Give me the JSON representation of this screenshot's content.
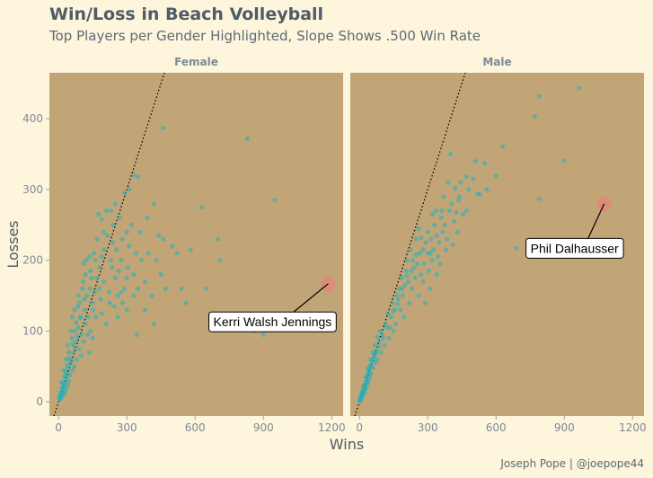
{
  "chart_data": {
    "type": "scatter",
    "title": "Win/Loss in Beach Volleyball",
    "subtitle": "Top Players per Gender Highlighted, Slope Shows .500 Win Rate",
    "xlabel": "Wins",
    "ylabel": "Losses",
    "xlim": [
      -40,
      1250
    ],
    "ylim": [
      -20,
      465
    ],
    "x_ticks": [
      0,
      300,
      600,
      900,
      1200
    ],
    "y_ticks": [
      0,
      100,
      200,
      300,
      400
    ],
    "reference_line": {
      "slope": 1,
      "intercept": 0,
      "style": "dotted"
    },
    "grid": false,
    "caption": "Joseph Pope | @joepope44",
    "panels": [
      {
        "name": "Female",
        "highlight": {
          "label": "Kerri Walsh Jennings",
          "x": 1185,
          "y": 167,
          "label_x": 940,
          "label_y": 113
        },
        "points": [
          [
            830,
            372
          ],
          [
            950,
            285
          ],
          [
            460,
            387
          ],
          [
            700,
            230
          ],
          [
            710,
            200
          ],
          [
            860,
            100
          ],
          [
            900,
            95
          ],
          [
            580,
            215
          ],
          [
            630,
            275
          ],
          [
            650,
            160
          ],
          [
            330,
            320
          ],
          [
            350,
            318
          ],
          [
            310,
            300
          ],
          [
            290,
            295
          ],
          [
            270,
            260
          ],
          [
            310,
            220
          ],
          [
            330,
            180
          ],
          [
            350,
            160
          ],
          [
            380,
            170
          ],
          [
            410,
            150
          ],
          [
            430,
            200
          ],
          [
            460,
            230
          ],
          [
            500,
            220
          ],
          [
            440,
            235
          ],
          [
            520,
            210
          ],
          [
            540,
            160
          ],
          [
            300,
            240
          ],
          [
            280,
            230
          ],
          [
            390,
            260
          ],
          [
            360,
            240
          ],
          [
            420,
            280
          ],
          [
            450,
            180
          ],
          [
            340,
            210
          ],
          [
            420,
            110
          ],
          [
            345,
            95
          ],
          [
            300,
            130
          ],
          [
            250,
            175
          ],
          [
            260,
            150
          ],
          [
            230,
            200
          ],
          [
            200,
            170
          ],
          [
            225,
            140
          ],
          [
            180,
            190
          ],
          [
            190,
            125
          ],
          [
            160,
            155
          ],
          [
            140,
            100
          ],
          [
            150,
            140
          ],
          [
            130,
            120
          ],
          [
            120,
            110
          ],
          [
            110,
            85
          ],
          [
            100,
            95
          ],
          [
            90,
            75
          ],
          [
            95,
            120
          ],
          [
            170,
            230
          ],
          [
            210,
            270
          ],
          [
            240,
            250
          ],
          [
            200,
            215
          ],
          [
            180,
            160
          ],
          [
            165,
            120
          ],
          [
            150,
            90
          ],
          [
            135,
            70
          ],
          [
            125,
            150
          ],
          [
            115,
            130
          ],
          [
            100,
            65
          ],
          [
            88,
            105
          ],
          [
            80,
            60
          ],
          [
            75,
            85
          ],
          [
            70,
            50
          ],
          [
            65,
            70
          ],
          [
            60,
            45
          ],
          [
            55,
            58
          ],
          [
            50,
            38
          ],
          [
            48,
            62
          ],
          [
            45,
            30
          ],
          [
            42,
            48
          ],
          [
            40,
            25
          ],
          [
            38,
            40
          ],
          [
            35,
            20
          ],
          [
            32,
            35
          ],
          [
            30,
            15
          ],
          [
            28,
            28
          ],
          [
            25,
            12
          ],
          [
            22,
            22
          ],
          [
            20,
            10
          ],
          [
            18,
            18
          ],
          [
            15,
            8
          ],
          [
            12,
            14
          ],
          [
            10,
            5
          ],
          [
            8,
            10
          ],
          [
            5,
            3
          ],
          [
            3,
            6
          ],
          [
            58,
            90
          ],
          [
            72,
            100
          ],
          [
            85,
            135
          ],
          [
            105,
            160
          ],
          [
            118,
            180
          ],
          [
            128,
            95
          ],
          [
            145,
            175
          ],
          [
            155,
            210
          ],
          [
            175,
            265
          ],
          [
            190,
            205
          ],
          [
            215,
            235
          ],
          [
            235,
            190
          ],
          [
            255,
            215
          ],
          [
            260,
            120
          ],
          [
            275,
            200
          ],
          [
            290,
            160
          ],
          [
            210,
            110
          ],
          [
            245,
            135
          ],
          [
            160,
            200
          ],
          [
            140,
            185
          ],
          [
            112,
            145
          ],
          [
            98,
            118
          ],
          [
            82,
            92
          ],
          [
            68,
            78
          ],
          [
            52,
            55
          ],
          [
            45,
            70
          ],
          [
            38,
            52
          ],
          [
            30,
            42
          ],
          [
            26,
            35
          ],
          [
            20,
            26
          ],
          [
            16,
            20
          ],
          [
            11,
            12
          ],
          [
            7,
            8
          ],
          [
            62,
            82
          ],
          [
            78,
            112
          ],
          [
            92,
            140
          ],
          [
            108,
            170
          ],
          [
            122,
            200
          ],
          [
            138,
            160
          ],
          [
            152,
            130
          ],
          [
            168,
            175
          ],
          [
            185,
            145
          ],
          [
            198,
            240
          ],
          [
            222,
            155
          ],
          [
            238,
            225
          ],
          [
            265,
            185
          ],
          [
            282,
            140
          ],
          [
            305,
            190
          ],
          [
            320,
            250
          ],
          [
            365,
            200
          ],
          [
            395,
            210
          ],
          [
            470,
            160
          ],
          [
            560,
            140
          ],
          [
            250,
            280
          ],
          [
            230,
            270
          ],
          [
            190,
            258
          ],
          [
            380,
            130
          ],
          [
            330,
            150
          ],
          [
            275,
            155
          ],
          [
            300,
            175
          ],
          [
            60,
            120
          ],
          [
            110,
            195
          ],
          [
            135,
            205
          ],
          [
            88,
            150
          ],
          [
            70,
            130
          ],
          [
            54,
            100
          ],
          [
            40,
            80
          ],
          [
            33,
            60
          ],
          [
            24,
            45
          ],
          [
            14,
            28
          ]
        ]
      },
      {
        "name": "Male",
        "highlight": {
          "label": "Phil Dalhausser",
          "x": 1075,
          "y": 280,
          "label_x": 945,
          "label_y": 217
        },
        "points": [
          [
            965,
            443
          ],
          [
            790,
            432
          ],
          [
            770,
            403
          ],
          [
            900,
            341
          ],
          [
            630,
            361
          ],
          [
            790,
            287
          ],
          [
            690,
            217
          ],
          [
            550,
            337
          ],
          [
            520,
            294
          ],
          [
            440,
            290
          ],
          [
            420,
            302
          ],
          [
            400,
            350
          ],
          [
            500,
            315
          ],
          [
            470,
            270
          ],
          [
            455,
            265
          ],
          [
            430,
            240
          ],
          [
            410,
            222
          ],
          [
            380,
            215
          ],
          [
            350,
            225
          ],
          [
            320,
            200
          ],
          [
            340,
            180
          ],
          [
            300,
            210
          ],
          [
            310,
            160
          ],
          [
            280,
            170
          ],
          [
            260,
            150
          ],
          [
            240,
            190
          ],
          [
            220,
            140
          ],
          [
            200,
            165
          ],
          [
            180,
            130
          ],
          [
            210,
            200
          ],
          [
            250,
            230
          ],
          [
            270,
            180
          ],
          [
            290,
            140
          ],
          [
            330,
            250
          ],
          [
            360,
            260
          ],
          [
            390,
            310
          ],
          [
            370,
            290
          ],
          [
            315,
            230
          ],
          [
            255,
            195
          ],
          [
            230,
            160
          ],
          [
            195,
            120
          ],
          [
            170,
            145
          ],
          [
            160,
            110
          ],
          [
            150,
            100
          ],
          [
            140,
            120
          ],
          [
            130,
            90
          ],
          [
            120,
            105
          ],
          [
            110,
            80
          ],
          [
            100,
            95
          ],
          [
            95,
            70
          ],
          [
            88,
            85
          ],
          [
            80,
            60
          ],
          [
            75,
            72
          ],
          [
            70,
            55
          ],
          [
            65,
            65
          ],
          [
            60,
            48
          ],
          [
            55,
            58
          ],
          [
            50,
            40
          ],
          [
            48,
            52
          ],
          [
            45,
            35
          ],
          [
            42,
            46
          ],
          [
            40,
            30
          ],
          [
            38,
            40
          ],
          [
            35,
            25
          ],
          [
            32,
            35
          ],
          [
            30,
            20
          ],
          [
            28,
            28
          ],
          [
            25,
            15
          ],
          [
            22,
            24
          ],
          [
            20,
            12
          ],
          [
            18,
            18
          ],
          [
            15,
            10
          ],
          [
            12,
            14
          ],
          [
            10,
            6
          ],
          [
            8,
            9
          ],
          [
            5,
            3
          ],
          [
            3,
            5
          ],
          [
            1,
            1
          ],
          [
            185,
            175
          ],
          [
            205,
            185
          ],
          [
            225,
            215
          ],
          [
            245,
            175
          ],
          [
            265,
            210
          ],
          [
            285,
            195
          ],
          [
            305,
            185
          ],
          [
            325,
            215
          ],
          [
            345,
            205
          ],
          [
            365,
            240
          ],
          [
            155,
            130
          ],
          [
            165,
            150
          ],
          [
            175,
            160
          ],
          [
            145,
            140
          ],
          [
            135,
            105
          ],
          [
            125,
            125
          ],
          [
            115,
            110
          ],
          [
            105,
            90
          ],
          [
            90,
            100
          ],
          [
            85,
            78
          ],
          [
            78,
            92
          ],
          [
            72,
            68
          ],
          [
            68,
            80
          ],
          [
            62,
            60
          ],
          [
            58,
            70
          ],
          [
            52,
            50
          ],
          [
            47,
            60
          ],
          [
            43,
            42
          ],
          [
            37,
            48
          ],
          [
            33,
            30
          ],
          [
            27,
            35
          ],
          [
            23,
            20
          ],
          [
            17,
            22
          ],
          [
            13,
            12
          ],
          [
            9,
            12
          ],
          [
            6,
            6
          ],
          [
            4,
            4
          ],
          [
            2,
            2
          ],
          [
            190,
            150
          ],
          [
            215,
            170
          ],
          [
            235,
            200
          ],
          [
            260,
            245
          ],
          [
            280,
            215
          ],
          [
            300,
            240
          ],
          [
            320,
            265
          ],
          [
            340,
            235
          ],
          [
            355,
            195
          ],
          [
            375,
            250
          ],
          [
            395,
            270
          ],
          [
            415,
            255
          ],
          [
            435,
            285
          ],
          [
            480,
            300
          ],
          [
            510,
            340
          ],
          [
            530,
            293
          ],
          [
            560,
            300
          ],
          [
            600,
            320
          ],
          [
            470,
            318
          ],
          [
            445,
            310
          ],
          [
            425,
            268
          ],
          [
            405,
            280
          ],
          [
            385,
            230
          ],
          [
            362,
            270
          ],
          [
            335,
            270
          ],
          [
            312,
            210
          ],
          [
            292,
            225
          ],
          [
            272,
            232
          ],
          [
            248,
            208
          ],
          [
            228,
            185
          ],
          [
            208,
            178
          ],
          [
            188,
            160
          ],
          [
            168,
            138
          ],
          [
            148,
            128
          ]
        ]
      }
    ]
  }
}
